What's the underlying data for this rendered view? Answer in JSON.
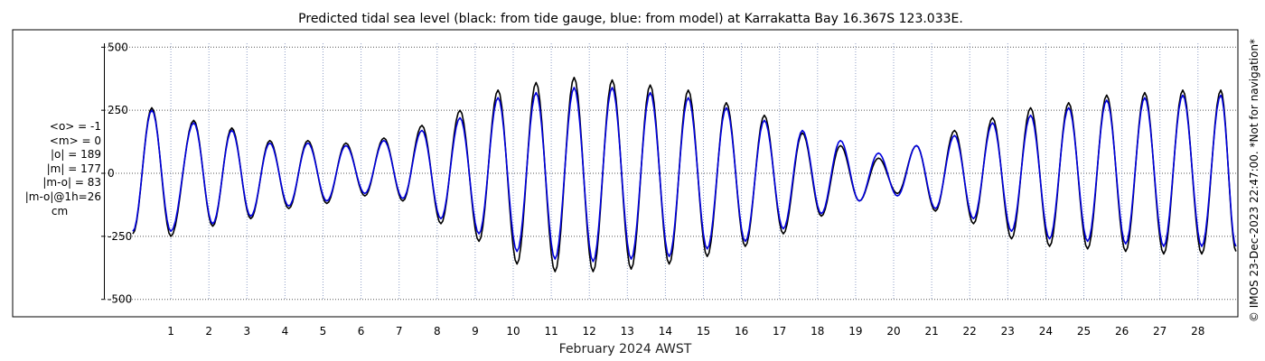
{
  "chart_data": {
    "type": "line",
    "title": "Predicted tidal sea level (black: from tide gauge, blue: from model) at Karrakatta Bay 16.367S 123.033E.",
    "xlabel": "February 2024 AWST",
    "ylabel": "",
    "ylim": [
      -525,
      525
    ],
    "xlim": [
      0,
      29.05
    ],
    "y_ticks": [
      "500",
      "250",
      "0",
      "-250",
      "-500"
    ],
    "x_ticks": [
      "1",
      "2",
      "3",
      "4",
      "5",
      "6",
      "7",
      "8",
      "9",
      "10",
      "11",
      "12",
      "13",
      "14",
      "15",
      "16",
      "17",
      "18",
      "19",
      "20",
      "21",
      "22",
      "23",
      "24",
      "25",
      "26",
      "27",
      "28"
    ],
    "grid": true,
    "series": [
      {
        "color": "#000000",
        "peak_days": [
          0.0,
          0.5,
          1.0,
          1.6,
          2.1,
          2.6,
          3.1,
          3.6,
          4.1,
          4.6,
          5.1,
          5.6,
          6.1,
          6.6,
          7.1,
          7.6,
          8.1,
          8.6,
          9.1,
          9.6,
          10.1,
          10.6,
          11.1,
          11.6,
          12.1,
          12.6,
          13.1,
          13.6,
          14.1,
          14.6,
          15.1,
          15.6,
          16.1,
          16.6,
          17.1,
          17.6,
          18.1,
          18.6,
          19.1,
          19.6,
          20.1,
          20.6,
          21.1,
          21.6,
          22.1,
          22.6,
          23.1,
          23.6,
          24.1,
          24.6,
          25.1,
          25.6,
          26.1,
          26.6,
          27.1,
          27.6,
          28.1,
          28.6,
          29.0
        ],
        "peak_values": [
          -240,
          260,
          -250,
          210,
          -210,
          180,
          -180,
          130,
          -140,
          130,
          -120,
          120,
          -90,
          140,
          -110,
          190,
          -200,
          250,
          -270,
          330,
          -360,
          360,
          -390,
          380,
          -390,
          370,
          -380,
          350,
          -360,
          330,
          -330,
          280,
          -290,
          230,
          -240,
          160,
          -170,
          110,
          -110,
          60,
          -80,
          110,
          -150,
          170,
          -200,
          220,
          -260,
          260,
          -290,
          280,
          -300,
          310,
          -310,
          320,
          -320,
          330,
          -320,
          330,
          -310
        ]
      },
      {
        "color": "#0000dd",
        "peak_days": [
          0.0,
          0.5,
          1.0,
          1.6,
          2.1,
          2.6,
          3.1,
          3.6,
          4.1,
          4.6,
          5.1,
          5.6,
          6.1,
          6.6,
          7.1,
          7.6,
          8.1,
          8.6,
          9.1,
          9.6,
          10.1,
          10.6,
          11.1,
          11.6,
          12.1,
          12.6,
          13.1,
          13.6,
          14.1,
          14.6,
          15.1,
          15.6,
          16.1,
          16.6,
          17.1,
          17.6,
          18.1,
          18.6,
          19.1,
          19.6,
          20.1,
          20.6,
          21.1,
          21.6,
          22.1,
          22.6,
          23.1,
          23.6,
          24.1,
          24.6,
          25.1,
          25.6,
          26.1,
          26.6,
          27.1,
          27.6,
          28.1,
          28.6,
          29.0
        ],
        "peak_values": [
          -230,
          250,
          -230,
          200,
          -200,
          170,
          -170,
          120,
          -130,
          120,
          -110,
          110,
          -80,
          130,
          -100,
          170,
          -180,
          220,
          -240,
          300,
          -310,
          320,
          -340,
          340,
          -350,
          340,
          -340,
          320,
          -330,
          300,
          -300,
          260,
          -270,
          210,
          -220,
          170,
          -160,
          130,
          -110,
          80,
          -90,
          110,
          -140,
          150,
          -180,
          200,
          -230,
          230,
          -260,
          260,
          -270,
          290,
          -280,
          300,
          -290,
          310,
          -290,
          310,
          -290
        ]
      }
    ]
  },
  "side_stats": [
    "<o> = -1",
    "<m> = 0",
    "|o| = 189",
    "|m| = 177",
    "|m-o| = 83",
    "|m-o|@1h=26",
    "cm"
  ],
  "right_note": "© IMOS 23-Dec-2023 22:47:00. *Not for navigation*"
}
